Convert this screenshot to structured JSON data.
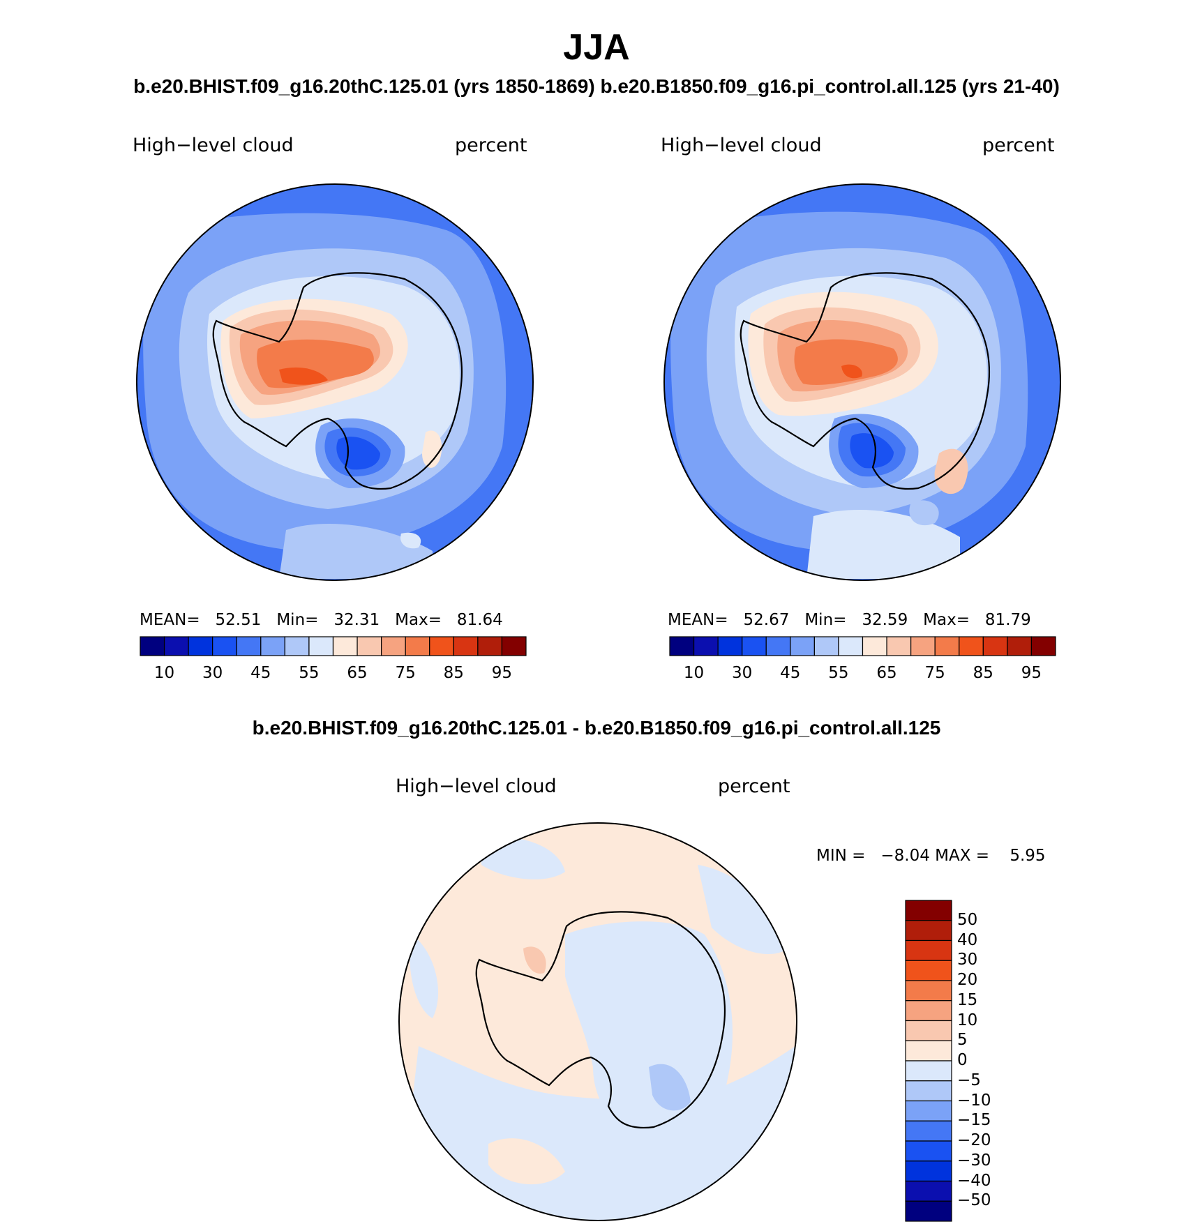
{
  "title": "JJA",
  "subtitle": "b.e20.BHIST.f09_g16.20thC.125.01 (yrs 1850-1869)  b.e20.B1850.f09_g16.pi_control.all.125 (yrs 21-40)",
  "diff_title": "b.e20.BHIST.f09_g16.20thC.125.01 - b.e20.B1850.f09_g16.pi_control.all.125",
  "colors": {
    "abs_levels": [
      "#00007f",
      "#0b0faf",
      "#0033dd",
      "#1a52f2",
      "#4477f5",
      "#7ba2f7",
      "#afc8f8",
      "#dbe8fb",
      "#fde9da",
      "#f9c8b0",
      "#f6a380",
      "#f37b4a",
      "#f0531b",
      "#d83512",
      "#b01e0a",
      "#830000"
    ],
    "diff_levels": [
      "#00007f",
      "#0b0faf",
      "#0033dd",
      "#1a52f2",
      "#4477f5",
      "#7ba2f7",
      "#afc8f8",
      "#dbe8fb",
      "#fde9da",
      "#f9c8b0",
      "#f6a380",
      "#f37b4a",
      "#f0531b",
      "#d83512",
      "#b01e0a",
      "#830000"
    ]
  },
  "chart_data": [
    {
      "type": "heatmap",
      "projection": "south polar stereographic",
      "case": "b.e20.BHIST.f09_g16.20thC.125.01 (yrs 1850-1869)",
      "left_label": "High−level cloud",
      "right_label": "percent",
      "stats": {
        "mean_label": "MEAN=",
        "mean": "52.51",
        "min_label": "Min=",
        "min": "32.31",
        "max_label": "Max=",
        "max": "81.64"
      },
      "colorbar_ticks": [
        "10",
        "30",
        "45",
        "55",
        "65",
        "75",
        "85",
        "95"
      ],
      "levels": [
        5,
        10,
        20,
        30,
        40,
        45,
        50,
        55,
        60,
        65,
        70,
        75,
        80,
        85,
        90,
        95
      ]
    },
    {
      "type": "heatmap",
      "projection": "south polar stereographic",
      "case": "b.e20.B1850.f09_g16.pi_control.all.125 (yrs 21-40)",
      "left_label": "High−level cloud",
      "right_label": "percent",
      "stats": {
        "mean_label": "MEAN=",
        "mean": "52.67",
        "min_label": "Min=",
        "min": "32.59",
        "max_label": "Max=",
        "max": "81.79"
      },
      "colorbar_ticks": [
        "10",
        "30",
        "45",
        "55",
        "65",
        "75",
        "85",
        "95"
      ],
      "levels": [
        5,
        10,
        20,
        30,
        40,
        45,
        50,
        55,
        60,
        65,
        70,
        75,
        80,
        85,
        90,
        95
      ]
    },
    {
      "type": "heatmap",
      "projection": "south polar stereographic",
      "case": "difference",
      "left_label": "High−level cloud",
      "right_label": "percent",
      "stats": {
        "min_label": "MIN =",
        "min": "−8.04",
        "max_label": "MAX =",
        "max": "5.95"
      },
      "colorbar_ticks": [
        "50",
        "40",
        "30",
        "20",
        "15",
        "10",
        "5",
        "0",
        "−5",
        "−10",
        "−15",
        "−20",
        "−30",
        "−40",
        "−50"
      ]
    }
  ]
}
